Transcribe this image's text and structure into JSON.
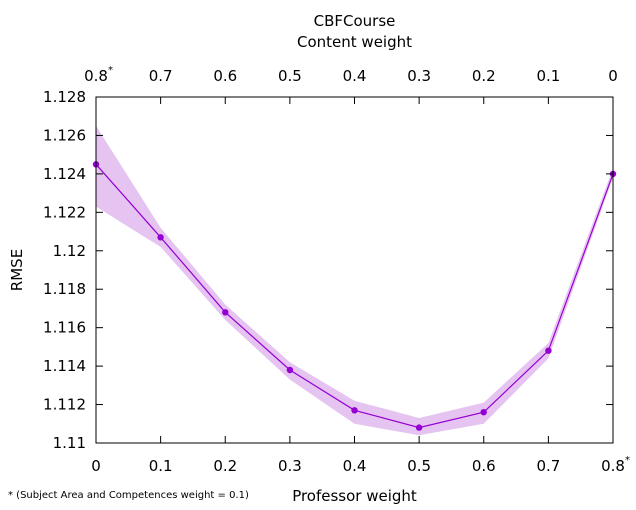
{
  "chart_data": {
    "type": "line",
    "title": "CBFCourse",
    "top_axis_label": "Content weight",
    "xlabel": "Professor weight",
    "ylabel": "RMSE",
    "x": [
      0,
      0.1,
      0.2,
      0.3,
      0.4,
      0.5,
      0.6,
      0.7,
      0.8
    ],
    "x_tick_labels": [
      "0",
      "0.1",
      "0.2",
      "0.3",
      "0.4",
      "0.5",
      "0.6",
      "0.7",
      "0.8"
    ],
    "top_tick_labels": [
      "0.8",
      "0.7",
      "0.6",
      "0.5",
      "0.4",
      "0.3",
      "0.2",
      "0.1",
      "0"
    ],
    "series": [
      {
        "values": [
          1.1245,
          1.1207,
          1.1168,
          1.1138,
          1.1117,
          1.1108,
          1.1116,
          1.1148,
          1.124
        ],
        "lower": [
          1.1223,
          1.1202,
          1.1164,
          1.1133,
          1.111,
          1.1104,
          1.111,
          1.1144,
          1.1238
        ],
        "upper": [
          1.1265,
          1.1212,
          1.1172,
          1.1142,
          1.1122,
          1.1113,
          1.1121,
          1.1152,
          1.1243
        ],
        "color": "#9400d3",
        "band_color": "#e6c4f1"
      }
    ],
    "ylim": [
      1.11,
      1.128
    ],
    "xlim": [
      0,
      0.8
    ],
    "y_ticks": [
      1.11,
      1.112,
      1.114,
      1.116,
      1.118,
      1.12,
      1.122,
      1.124,
      1.126,
      1.128
    ],
    "y_tick_labels": [
      "1.11",
      "1.112",
      "1.114",
      "1.116",
      "1.118",
      "1.12",
      "1.122",
      "1.124",
      "1.126",
      "1.128"
    ],
    "grid": false,
    "asterisk": "*",
    "footnote": "* (Subject Area and Competences weight = 0.1)"
  }
}
